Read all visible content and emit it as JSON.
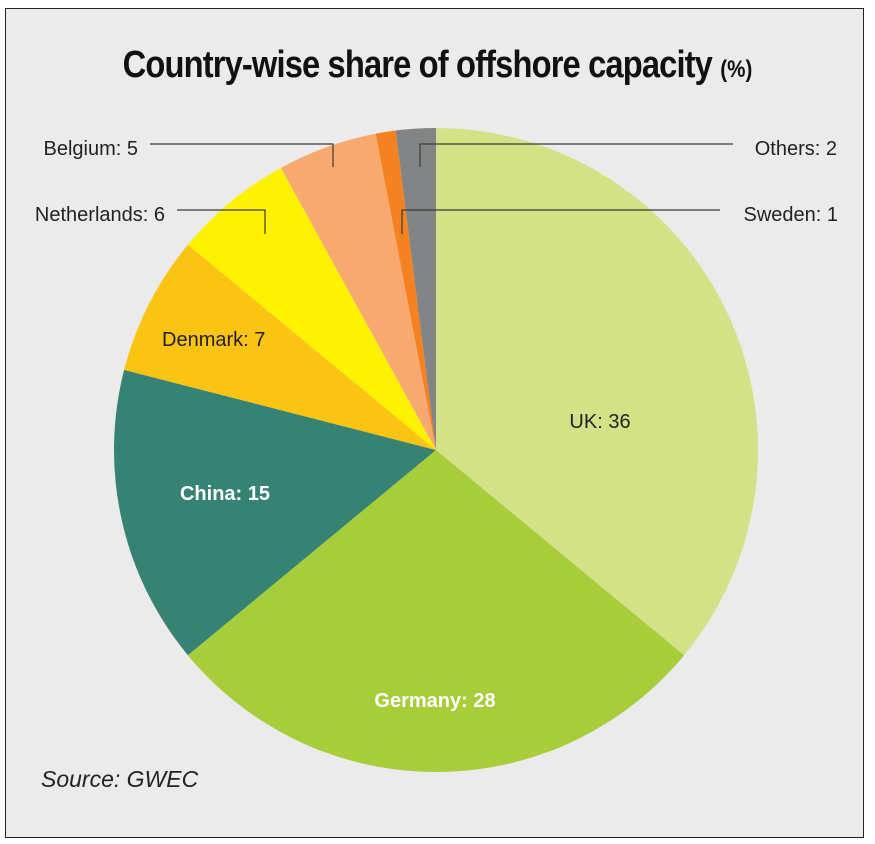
{
  "title": "Country-wise share of offshore capacity",
  "title_unit": "(%)",
  "source": "Source: GWEC",
  "chart_data": {
    "type": "pie",
    "title": "Country-wise share of offshore capacity (%)",
    "slices": [
      {
        "name": "UK",
        "value": 36,
        "label": "UK: 36",
        "color": "#d3e286",
        "labelColor": "#222222",
        "bold": false,
        "outside": false
      },
      {
        "name": "Germany",
        "value": 28,
        "label": "Germany: 28",
        "color": "#a7cd3a",
        "labelColor": "#ffffff",
        "bold": true,
        "outside": false
      },
      {
        "name": "China",
        "value": 15,
        "label": "China: 15",
        "color": "#378373",
        "labelColor": "#ffffff",
        "bold": true,
        "outside": false
      },
      {
        "name": "Denmark",
        "value": 7,
        "label": "Denmark: 7",
        "color": "#fcc412",
        "labelColor": "#222222",
        "bold": false,
        "outside": false
      },
      {
        "name": "Netherlands",
        "value": 6,
        "label": "Netherlands: 6",
        "color": "#fff200",
        "labelColor": "#222222",
        "bold": false,
        "outside": true
      },
      {
        "name": "Belgium",
        "value": 5,
        "label": "Belgium: 5",
        "color": "#f7a970",
        "labelColor": "#222222",
        "bold": false,
        "outside": true
      },
      {
        "name": "Sweden",
        "value": 1,
        "label": "Sweden: 1",
        "color": "#f48220",
        "labelColor": "#222222",
        "bold": false,
        "outside": true
      },
      {
        "name": "Others",
        "value": 2,
        "label": "Others: 2",
        "color": "#838486",
        "labelColor": "#222222",
        "bold": false,
        "outside": true
      }
    ]
  }
}
